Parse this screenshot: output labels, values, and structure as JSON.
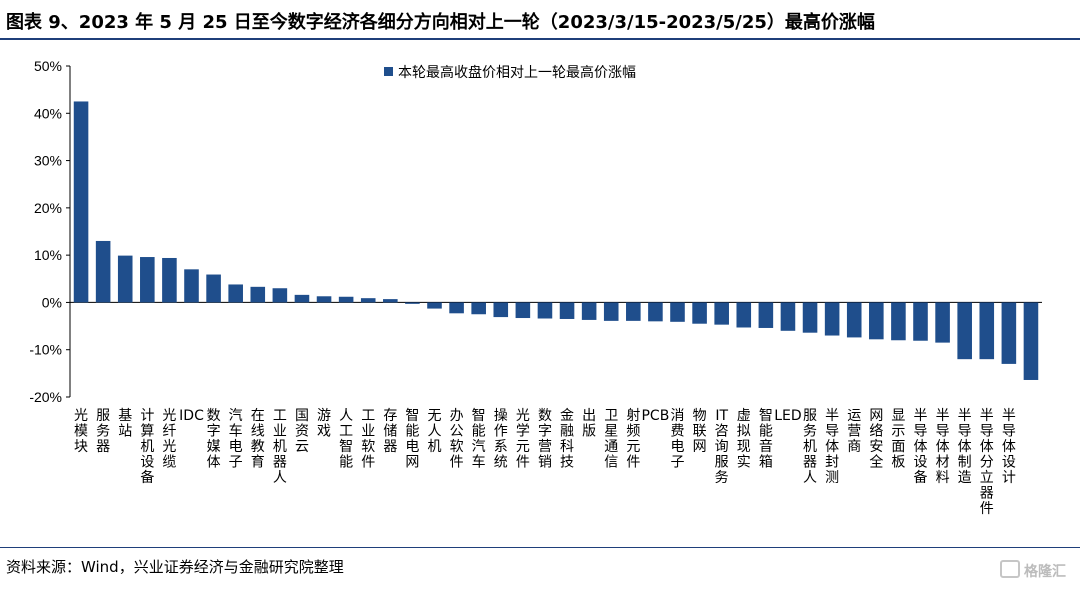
{
  "title": "图表 9、2023 年 5 月 25 日至今数字经济各细分方向相对上一轮（2023/3/15-2023/5/25）最高价涨幅",
  "source": "资料来源：Wind，兴业证券经济与金融研究院整理",
  "watermark": "格隆汇",
  "chart_data": {
    "type": "bar",
    "title": "",
    "xlabel": "",
    "ylabel": "",
    "ylim": [
      -20,
      50
    ],
    "yticks": [
      "50%",
      "40%",
      "30%",
      "20%",
      "10%",
      "0%",
      "-10%",
      "-20%"
    ],
    "legend": "top-center",
    "grid": false,
    "color": "#1f4e8c",
    "series": [
      {
        "name": "本轮最高收盘价相对上一轮最高价涨幅",
        "values": [
          42.5,
          13.0,
          9.9,
          9.6,
          9.4,
          7.0,
          5.9,
          3.8,
          3.3,
          3.0,
          1.6,
          1.3,
          1.2,
          0.9,
          0.7,
          -0.3,
          -1.3,
          -2.3,
          -2.5,
          -3.1,
          -3.3,
          -3.4,
          -3.5,
          -3.7,
          -3.9,
          -3.9,
          -4.0,
          -4.1,
          -4.5,
          -4.7,
          -5.3,
          -5.4,
          -6.0,
          -6.4,
          -7.0,
          -7.4,
          -7.8,
          -8.0,
          -8.1,
          -8.5,
          -12.0,
          -12.0,
          -13.0,
          -16.4
        ]
      }
    ],
    "categories": [
      "光模块",
      "服务器",
      "基站",
      "计算机设备",
      "光纤光缆",
      "IDC",
      "数字媒体",
      "汽车电子",
      "在线教育",
      "工业机器人",
      "国资云",
      "游戏",
      "人工智能",
      "工业软件",
      "存储器",
      "智能电网",
      "无人机",
      "办公软件",
      "智能汽车",
      "操作系统",
      "光学元件",
      "数字营销",
      "金融科技",
      "出版",
      "卫星通信",
      "射频元件",
      "PCB",
      "消费电子",
      "物联网",
      "IT咨询服务",
      "虚拟现实",
      "智能音箱",
      "LED",
      "服务机器人",
      "半导体封测",
      "运营商",
      "网络安全",
      "显示面板",
      "半导体设备",
      "半导体材料",
      "半导体制造",
      "半导体分立器件",
      "半导体设计",
      ""
    ]
  }
}
